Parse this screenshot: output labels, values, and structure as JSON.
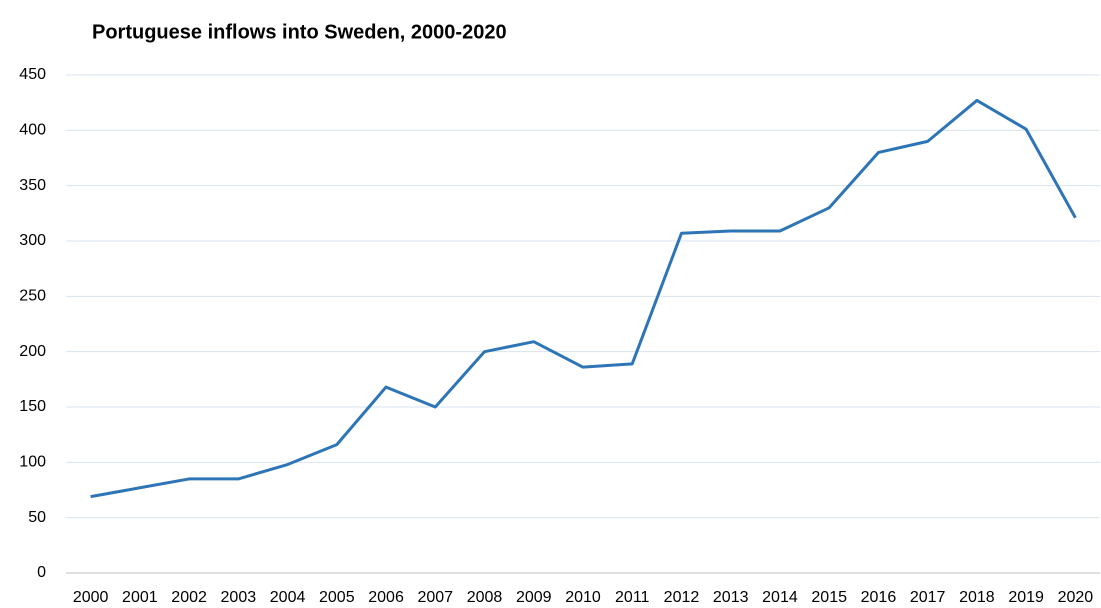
{
  "chart_data": {
    "type": "line",
    "title": "Portuguese inflows into Sweden, 2000-2020",
    "categories": [
      "2000",
      "2001",
      "2002",
      "2003",
      "2004",
      "2005",
      "2006",
      "2007",
      "2008",
      "2009",
      "2010",
      "2011",
      "2012",
      "2013",
      "2014",
      "2015",
      "2016",
      "2017",
      "2018",
      "2019",
      "2020"
    ],
    "series": [
      {
        "name": "Portuguese inflows",
        "color": "#2e75b6",
        "values": [
          69,
          77,
          85,
          85,
          98,
          116,
          168,
          150,
          200,
          209,
          186,
          189,
          307,
          309,
          309,
          330,
          380,
          390,
          427,
          401,
          321
        ]
      }
    ],
    "ylim": [
      0,
      450
    ],
    "yticks": [
      0,
      50,
      100,
      150,
      200,
      250,
      300,
      350,
      400,
      450
    ],
    "grid": true
  }
}
